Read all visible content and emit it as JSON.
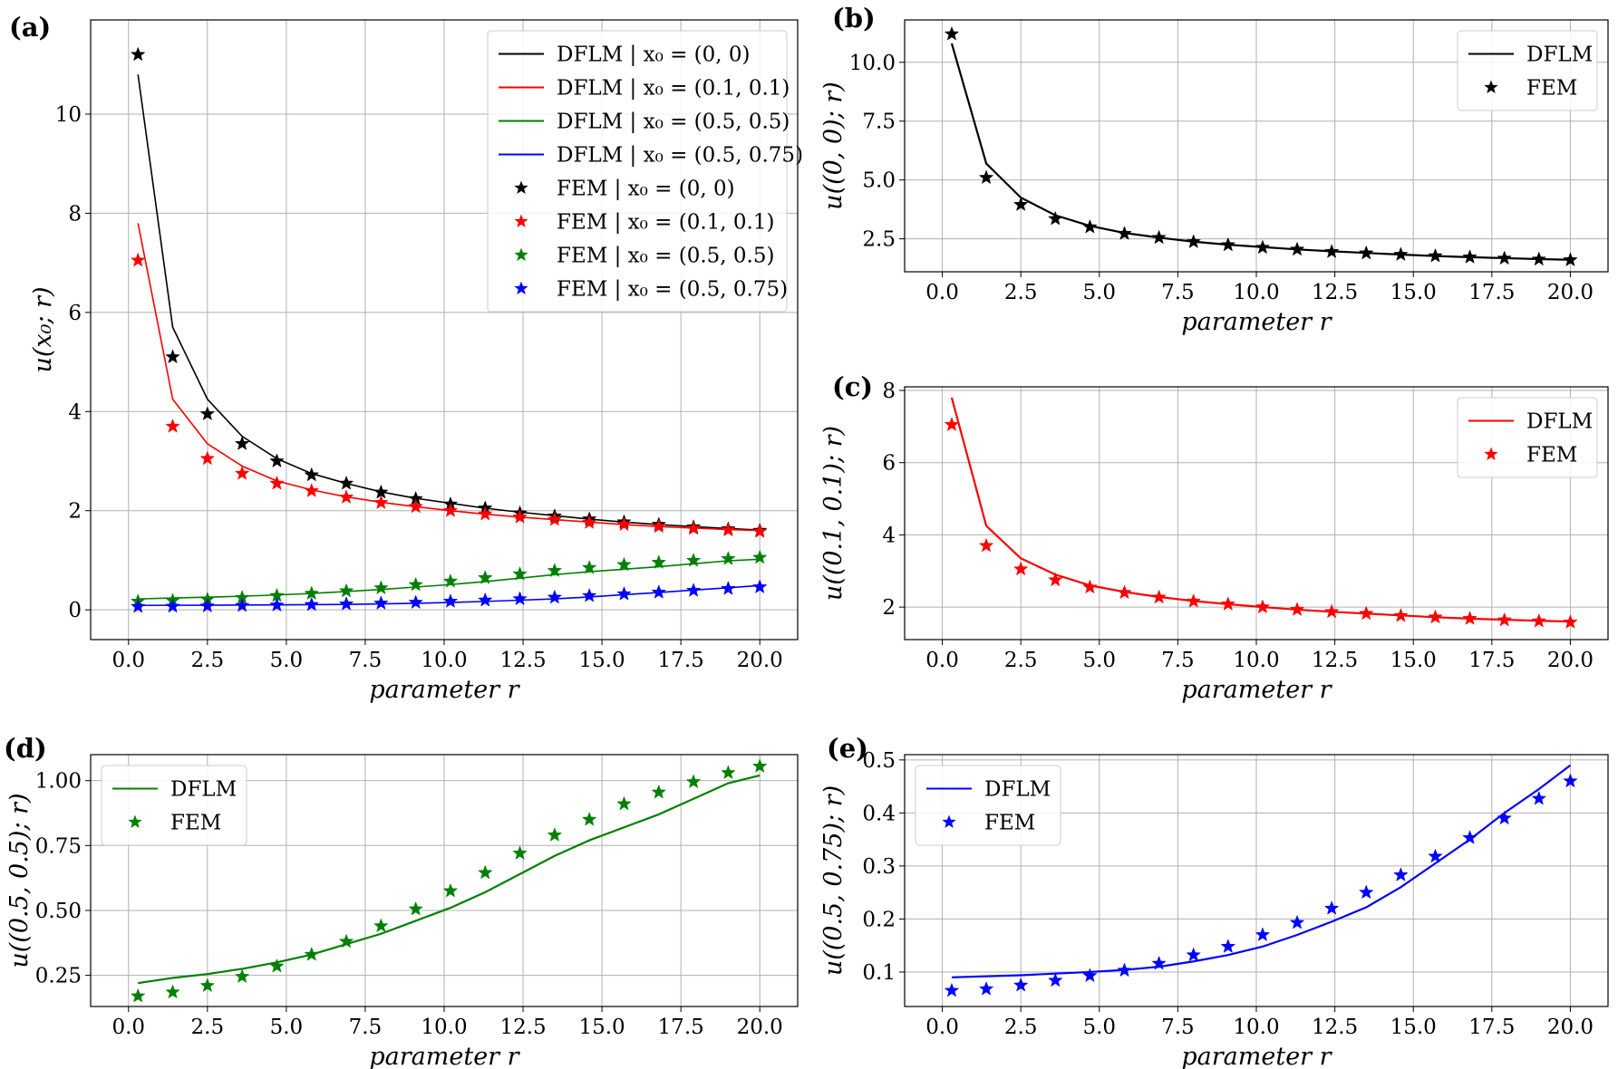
{
  "colors": {
    "black": "#000000",
    "red": "#ff0000",
    "green": "#008000",
    "blue": "#0000ff"
  },
  "chart_data": [
    {
      "panel": "(a)",
      "type": "line",
      "xlabel": "parameter r",
      "ylabel": "u(x₀; r)",
      "xlim": [
        -1.2,
        21.2
      ],
      "ylim": [
        -0.6,
        11.9
      ],
      "xticks": [
        "0.0",
        "2.5",
        "5.0",
        "7.5",
        "10.0",
        "12.5",
        "15.0",
        "17.5",
        "20.0"
      ],
      "xtick_values": [
        0,
        2.5,
        5,
        7.5,
        10,
        12.5,
        15,
        17.5,
        20
      ],
      "yticks": [
        "0",
        "2",
        "4",
        "6",
        "8",
        "10"
      ],
      "ytick_values": [
        0,
        2,
        4,
        6,
        8,
        10
      ],
      "grid": true,
      "legend_position": "top-right",
      "series": [
        {
          "name": "DFLM | x₀ = (0, 0)",
          "kind": "line",
          "color": "black",
          "x": [
            0.3,
            1.4,
            2.5,
            3.6,
            4.7,
            5.8,
            6.9,
            8.0,
            9.1,
            10.2,
            11.3,
            12.4,
            13.5,
            14.6,
            15.7,
            16.8,
            17.9,
            19.0,
            20.0
          ],
          "y": [
            10.8,
            5.7,
            4.25,
            3.5,
            3.05,
            2.75,
            2.55,
            2.38,
            2.25,
            2.15,
            2.05,
            1.97,
            1.9,
            1.83,
            1.77,
            1.72,
            1.68,
            1.64,
            1.61
          ]
        },
        {
          "name": "DFLM | x₀ = (0.1, 0.1)",
          "kind": "line",
          "color": "red",
          "x": [
            0.3,
            1.4,
            2.5,
            3.6,
            4.7,
            5.8,
            6.9,
            8.0,
            9.1,
            10.2,
            11.3,
            12.4,
            13.5,
            14.6,
            15.7,
            16.8,
            17.9,
            19.0,
            20.0
          ],
          "y": [
            7.8,
            4.25,
            3.35,
            2.9,
            2.6,
            2.42,
            2.28,
            2.17,
            2.08,
            2.0,
            1.93,
            1.87,
            1.82,
            1.77,
            1.72,
            1.68,
            1.65,
            1.62,
            1.6
          ]
        },
        {
          "name": "DFLM | x₀ = (0.5, 0.5)",
          "kind": "line",
          "color": "green",
          "x": [
            0.3,
            1.4,
            2.5,
            3.6,
            4.7,
            5.8,
            6.9,
            8.0,
            9.1,
            10.2,
            11.3,
            12.4,
            13.5,
            14.6,
            15.7,
            16.8,
            17.9,
            19.0,
            20.0
          ],
          "y": [
            0.22,
            0.24,
            0.255,
            0.275,
            0.3,
            0.33,
            0.37,
            0.41,
            0.46,
            0.51,
            0.57,
            0.64,
            0.71,
            0.77,
            0.82,
            0.87,
            0.93,
            0.99,
            1.02
          ]
        },
        {
          "name": "DFLM | x₀ = (0.5, 0.75)",
          "kind": "line",
          "color": "blue",
          "x": [
            0.3,
            1.4,
            2.5,
            3.6,
            4.7,
            5.8,
            6.9,
            8.0,
            9.1,
            10.2,
            11.3,
            12.4,
            13.5,
            14.6,
            15.7,
            16.8,
            17.9,
            19.0,
            20.0
          ],
          "y": [
            0.09,
            0.092,
            0.094,
            0.097,
            0.1,
            0.104,
            0.11,
            0.12,
            0.132,
            0.148,
            0.17,
            0.195,
            0.222,
            0.26,
            0.305,
            0.35,
            0.4,
            0.445,
            0.49
          ]
        },
        {
          "name": "FEM | x₀ = (0, 0)",
          "kind": "marker",
          "color": "black",
          "x": [
            0.3,
            1.4,
            2.5,
            3.6,
            4.7,
            5.8,
            6.9,
            8.0,
            9.1,
            10.2,
            11.3,
            12.4,
            13.5,
            14.6,
            15.7,
            16.8,
            17.9,
            19.0,
            20.0
          ],
          "y": [
            11.2,
            5.1,
            3.95,
            3.35,
            3.0,
            2.72,
            2.55,
            2.37,
            2.24,
            2.13,
            2.05,
            1.95,
            1.89,
            1.83,
            1.77,
            1.72,
            1.67,
            1.63,
            1.6
          ]
        },
        {
          "name": "FEM | x₀ = (0.1, 0.1)",
          "kind": "marker",
          "color": "red",
          "x": [
            0.3,
            1.4,
            2.5,
            3.6,
            4.7,
            5.8,
            6.9,
            8.0,
            9.1,
            10.2,
            11.3,
            12.4,
            13.5,
            14.6,
            15.7,
            16.8,
            17.9,
            19.0,
            20.0
          ],
          "y": [
            7.05,
            3.7,
            3.05,
            2.75,
            2.55,
            2.4,
            2.27,
            2.16,
            2.08,
            2.0,
            1.93,
            1.87,
            1.82,
            1.76,
            1.72,
            1.68,
            1.64,
            1.61,
            1.58
          ]
        },
        {
          "name": "FEM | x₀ = (0.5, 0.5)",
          "kind": "marker",
          "color": "green",
          "x": [
            0.3,
            1.4,
            2.5,
            3.6,
            4.7,
            5.8,
            6.9,
            8.0,
            9.1,
            10.2,
            11.3,
            12.4,
            13.5,
            14.6,
            15.7,
            16.8,
            17.9,
            19.0,
            20.0
          ],
          "y": [
            0.17,
            0.185,
            0.21,
            0.245,
            0.285,
            0.33,
            0.38,
            0.44,
            0.505,
            0.575,
            0.645,
            0.72,
            0.79,
            0.85,
            0.91,
            0.955,
            0.995,
            1.03,
            1.055
          ]
        },
        {
          "name": "FEM | x₀ = (0.5, 0.75)",
          "kind": "marker",
          "color": "blue",
          "x": [
            0.3,
            1.4,
            2.5,
            3.6,
            4.7,
            5.8,
            6.9,
            8.0,
            9.1,
            10.2,
            11.3,
            12.4,
            13.5,
            14.6,
            15.7,
            16.8,
            17.9,
            19.0,
            20.0
          ],
          "y": [
            0.065,
            0.068,
            0.075,
            0.084,
            0.093,
            0.103,
            0.116,
            0.132,
            0.148,
            0.17,
            0.193,
            0.22,
            0.25,
            0.283,
            0.318,
            0.353,
            0.39,
            0.427,
            0.46
          ]
        }
      ]
    },
    {
      "panel": "(b)",
      "type": "line",
      "xlabel": "parameter r",
      "ylabel": "u((0, 0); r)",
      "xlim": [
        -1.2,
        21.2
      ],
      "ylim": [
        1.1,
        11.8
      ],
      "xticks": [
        "0.0",
        "2.5",
        "5.0",
        "7.5",
        "10.0",
        "12.5",
        "15.0",
        "17.5",
        "20.0"
      ],
      "xtick_values": [
        0,
        2.5,
        5,
        7.5,
        10,
        12.5,
        15,
        17.5,
        20
      ],
      "yticks": [
        "2.5",
        "5.0",
        "7.5",
        "10.0"
      ],
      "ytick_values": [
        2.5,
        5,
        7.5,
        10
      ],
      "grid": true,
      "legend_position": "top-right",
      "series": [
        {
          "name": "DFLM",
          "kind": "line",
          "color": "black",
          "x": [
            0.3,
            1.4,
            2.5,
            3.6,
            4.7,
            5.8,
            6.9,
            8.0,
            9.1,
            10.2,
            11.3,
            12.4,
            13.5,
            14.6,
            15.7,
            16.8,
            17.9,
            19.0,
            20.0
          ],
          "y": [
            10.8,
            5.7,
            4.25,
            3.5,
            3.05,
            2.75,
            2.55,
            2.38,
            2.25,
            2.15,
            2.05,
            1.97,
            1.9,
            1.83,
            1.77,
            1.72,
            1.68,
            1.64,
            1.61
          ]
        },
        {
          "name": "FEM",
          "kind": "marker",
          "color": "black",
          "x": [
            0.3,
            1.4,
            2.5,
            3.6,
            4.7,
            5.8,
            6.9,
            8.0,
            9.1,
            10.2,
            11.3,
            12.4,
            13.5,
            14.6,
            15.7,
            16.8,
            17.9,
            19.0,
            20.0
          ],
          "y": [
            11.2,
            5.1,
            3.95,
            3.35,
            3.0,
            2.72,
            2.55,
            2.37,
            2.24,
            2.13,
            2.05,
            1.95,
            1.89,
            1.83,
            1.77,
            1.72,
            1.67,
            1.63,
            1.6
          ]
        }
      ]
    },
    {
      "panel": "(c)",
      "type": "line",
      "xlabel": "parameter r",
      "ylabel": "u((0.1, 0.1); r)",
      "xlim": [
        -1.2,
        21.2
      ],
      "ylim": [
        1.1,
        8.1
      ],
      "xticks": [
        "0.0",
        "2.5",
        "5.0",
        "7.5",
        "10.0",
        "12.5",
        "15.0",
        "17.5",
        "20.0"
      ],
      "xtick_values": [
        0,
        2.5,
        5,
        7.5,
        10,
        12.5,
        15,
        17.5,
        20
      ],
      "yticks": [
        "2",
        "4",
        "6",
        "8"
      ],
      "ytick_values": [
        2,
        4,
        6,
        8
      ],
      "grid": true,
      "legend_position": "top-right",
      "series": [
        {
          "name": "DFLM",
          "kind": "line",
          "color": "red",
          "x": [
            0.3,
            1.4,
            2.5,
            3.6,
            4.7,
            5.8,
            6.9,
            8.0,
            9.1,
            10.2,
            11.3,
            12.4,
            13.5,
            14.6,
            15.7,
            16.8,
            17.9,
            19.0,
            20.0
          ],
          "y": [
            7.8,
            4.25,
            3.35,
            2.9,
            2.6,
            2.42,
            2.28,
            2.17,
            2.08,
            2.0,
            1.93,
            1.87,
            1.82,
            1.77,
            1.72,
            1.68,
            1.65,
            1.62,
            1.6
          ]
        },
        {
          "name": "FEM",
          "kind": "marker",
          "color": "red",
          "x": [
            0.3,
            1.4,
            2.5,
            3.6,
            4.7,
            5.8,
            6.9,
            8.0,
            9.1,
            10.2,
            11.3,
            12.4,
            13.5,
            14.6,
            15.7,
            16.8,
            17.9,
            19.0,
            20.0
          ],
          "y": [
            7.05,
            3.7,
            3.05,
            2.75,
            2.55,
            2.4,
            2.27,
            2.16,
            2.08,
            2.0,
            1.93,
            1.87,
            1.82,
            1.76,
            1.72,
            1.68,
            1.64,
            1.61,
            1.58
          ]
        }
      ]
    },
    {
      "panel": "(d)",
      "type": "line",
      "xlabel": "parameter r",
      "ylabel": "u((0.5, 0.5); r)",
      "xlim": [
        -1.2,
        21.2
      ],
      "ylim": [
        0.13,
        1.1
      ],
      "xticks": [
        "0.0",
        "2.5",
        "5.0",
        "7.5",
        "10.0",
        "12.5",
        "15.0",
        "17.5",
        "20.0"
      ],
      "xtick_values": [
        0,
        2.5,
        5,
        7.5,
        10,
        12.5,
        15,
        17.5,
        20
      ],
      "yticks": [
        "0.25",
        "0.50",
        "0.75",
        "1.00"
      ],
      "ytick_values": [
        0.25,
        0.5,
        0.75,
        1.0
      ],
      "grid": true,
      "legend_position": "top-left",
      "series": [
        {
          "name": "DFLM",
          "kind": "line",
          "color": "green",
          "x": [
            0.3,
            1.4,
            2.5,
            3.6,
            4.7,
            5.8,
            6.9,
            8.0,
            9.1,
            10.2,
            11.3,
            12.4,
            13.5,
            14.6,
            15.7,
            16.8,
            17.9,
            19.0,
            20.0
          ],
          "y": [
            0.22,
            0.24,
            0.255,
            0.275,
            0.3,
            0.33,
            0.37,
            0.41,
            0.46,
            0.51,
            0.57,
            0.64,
            0.71,
            0.77,
            0.82,
            0.87,
            0.93,
            0.99,
            1.02
          ]
        },
        {
          "name": "FEM",
          "kind": "marker",
          "color": "green",
          "x": [
            0.3,
            1.4,
            2.5,
            3.6,
            4.7,
            5.8,
            6.9,
            8.0,
            9.1,
            10.2,
            11.3,
            12.4,
            13.5,
            14.6,
            15.7,
            16.8,
            17.9,
            19.0,
            20.0
          ],
          "y": [
            0.17,
            0.185,
            0.21,
            0.245,
            0.285,
            0.33,
            0.38,
            0.44,
            0.505,
            0.575,
            0.645,
            0.72,
            0.79,
            0.85,
            0.91,
            0.955,
            0.995,
            1.03,
            1.055
          ]
        }
      ]
    },
    {
      "panel": "(e)",
      "type": "line",
      "xlabel": "parameter r",
      "ylabel": "u((0.5, 0.75); r)",
      "xlim": [
        -1.2,
        21.2
      ],
      "ylim": [
        0.035,
        0.51
      ],
      "xticks": [
        "0.0",
        "2.5",
        "5.0",
        "7.5",
        "10.0",
        "12.5",
        "15.0",
        "17.5",
        "20.0"
      ],
      "xtick_values": [
        0,
        2.5,
        5,
        7.5,
        10,
        12.5,
        15,
        17.5,
        20
      ],
      "yticks": [
        "0.1",
        "0.2",
        "0.3",
        "0.4",
        "0.5"
      ],
      "ytick_values": [
        0.1,
        0.2,
        0.3,
        0.4,
        0.5
      ],
      "grid": true,
      "legend_position": "top-left",
      "series": [
        {
          "name": "DFLM",
          "kind": "line",
          "color": "blue",
          "x": [
            0.3,
            1.4,
            2.5,
            3.6,
            4.7,
            5.8,
            6.9,
            8.0,
            9.1,
            10.2,
            11.3,
            12.4,
            13.5,
            14.6,
            15.7,
            16.8,
            17.9,
            19.0,
            20.0
          ],
          "y": [
            0.09,
            0.092,
            0.094,
            0.097,
            0.1,
            0.104,
            0.11,
            0.12,
            0.132,
            0.148,
            0.17,
            0.195,
            0.222,
            0.26,
            0.305,
            0.35,
            0.4,
            0.445,
            0.49
          ]
        },
        {
          "name": "FEM",
          "kind": "marker",
          "color": "blue",
          "x": [
            0.3,
            1.4,
            2.5,
            3.6,
            4.7,
            5.8,
            6.9,
            8.0,
            9.1,
            10.2,
            11.3,
            12.4,
            13.5,
            14.6,
            15.7,
            16.8,
            17.9,
            19.0,
            20.0
          ],
          "y": [
            0.065,
            0.068,
            0.075,
            0.084,
            0.093,
            0.103,
            0.116,
            0.132,
            0.148,
            0.17,
            0.193,
            0.22,
            0.25,
            0.283,
            0.318,
            0.353,
            0.39,
            0.427,
            0.46
          ]
        }
      ]
    }
  ]
}
